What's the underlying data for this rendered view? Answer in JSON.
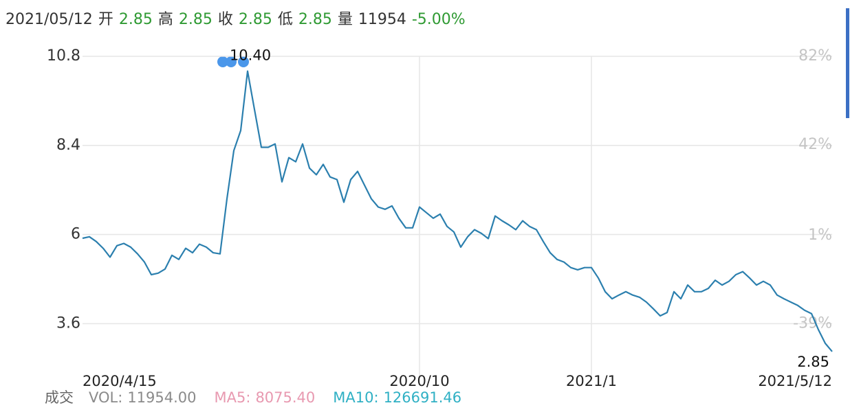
{
  "quote": {
    "date": "2021/05/12",
    "fields": [
      {
        "label": "开",
        "value": "2.85"
      },
      {
        "label": "高",
        "value": "2.85"
      },
      {
        "label": "收",
        "value": "2.85"
      },
      {
        "label": "低",
        "value": "2.85"
      },
      {
        "label": "量",
        "value": "11954"
      }
    ],
    "change": "-5.00%"
  },
  "volume": {
    "label": "成交",
    "items": [
      {
        "name": "VOL:",
        "value": "11954.00",
        "color": "#8a8a8a"
      },
      {
        "name": "MA5:",
        "value": "8075.40",
        "color": "#e899b0"
      },
      {
        "name": "MA10:",
        "value": "126691.46",
        "color": "#2fb0c4"
      }
    ]
  },
  "chart_data": {
    "type": "line",
    "color": "#2b7fae",
    "grid": true,
    "categories": [
      "2020/4/15",
      null,
      null,
      null,
      null,
      null,
      null,
      null,
      null,
      null,
      null,
      null,
      null,
      null,
      null,
      null,
      null,
      null,
      null,
      null,
      null,
      null,
      null,
      null,
      null,
      null,
      null,
      null,
      null,
      null,
      null,
      null,
      null,
      null,
      null,
      null,
      null,
      null,
      null,
      null,
      null,
      null,
      null,
      null,
      null,
      null,
      null,
      null,
      null,
      "2020/10",
      null,
      null,
      null,
      null,
      null,
      null,
      null,
      null,
      null,
      null,
      null,
      null,
      null,
      null,
      null,
      null,
      null,
      null,
      null,
      null,
      null,
      null,
      null,
      null,
      "2021/1",
      null,
      null,
      null,
      null,
      null,
      null,
      null,
      null,
      null,
      null,
      null,
      null,
      null,
      null,
      null,
      null,
      null,
      null,
      null,
      null,
      null,
      null,
      null,
      null,
      null,
      null,
      null,
      null,
      null,
      null,
      null,
      null,
      null,
      null,
      "2021/5/12"
    ],
    "values": [
      5.9,
      5.94,
      5.81,
      5.63,
      5.39,
      5.7,
      5.76,
      5.66,
      5.48,
      5.26,
      4.92,
      4.96,
      5.07,
      5.44,
      5.33,
      5.63,
      5.51,
      5.74,
      5.66,
      5.51,
      5.48,
      6.96,
      8.26,
      8.8,
      10.4,
      9.37,
      8.35,
      8.35,
      8.44,
      7.42,
      8.07,
      7.96,
      8.44,
      7.79,
      7.61,
      7.89,
      7.55,
      7.48,
      6.87,
      7.48,
      7.7,
      7.33,
      6.96,
      6.74,
      6.68,
      6.77,
      6.44,
      6.18,
      6.18,
      6.74,
      6.59,
      6.44,
      6.55,
      6.22,
      6.07,
      5.66,
      5.94,
      6.13,
      6.03,
      5.89,
      6.5,
      6.37,
      6.26,
      6.13,
      6.37,
      6.22,
      6.13,
      5.81,
      5.51,
      5.33,
      5.26,
      5.11,
      5.05,
      5.11,
      5.11,
      4.83,
      4.46,
      4.27,
      4.37,
      4.46,
      4.37,
      4.31,
      4.18,
      4.0,
      3.81,
      3.9,
      4.46,
      4.27,
      4.64,
      4.46,
      4.46,
      4.55,
      4.77,
      4.64,
      4.74,
      4.92,
      5.0,
      4.83,
      4.64,
      4.74,
      4.64,
      4.37,
      4.27,
      4.18,
      4.09,
      3.96,
      3.87,
      3.44,
      3.07,
      2.85
    ],
    "value_labels": [
      null,
      null,
      null,
      null,
      null,
      null,
      null,
      null,
      null,
      null,
      null,
      null,
      null,
      null,
      null,
      null,
      null,
      null,
      null,
      null,
      null,
      null,
      null,
      null,
      "10.40",
      null,
      null,
      null,
      null,
      null,
      null,
      null,
      null,
      null,
      null,
      null,
      null,
      null,
      null,
      null,
      null,
      null,
      null,
      null,
      null,
      null,
      null,
      null,
      null,
      null,
      null,
      null,
      null,
      null,
      null,
      null,
      null,
      null,
      null,
      null,
      null,
      null,
      null,
      null,
      null,
      null,
      null,
      null,
      null,
      null,
      null,
      null,
      null,
      null,
      null,
      null,
      null,
      null,
      null,
      null,
      null,
      null,
      null,
      null,
      null,
      null,
      null,
      null,
      null,
      null,
      null,
      null,
      null,
      null,
      null,
      null,
      null,
      null,
      null,
      null,
      null,
      null,
      null,
      null,
      null,
      null,
      null,
      null,
      null,
      "2.85"
    ],
    "ylim": [
      2.7,
      10.8
    ],
    "yticks": [
      3.6,
      6,
      8.4,
      10.8
    ],
    "y2lim": [
      -54,
      82
    ],
    "y2ticks": [
      {
        "value": -39,
        "label": "-39%"
      },
      {
        "value": 1,
        "label": "1%"
      },
      {
        "value": 42,
        "label": "42%"
      },
      {
        "value": 82,
        "label": "82%"
      }
    ]
  }
}
